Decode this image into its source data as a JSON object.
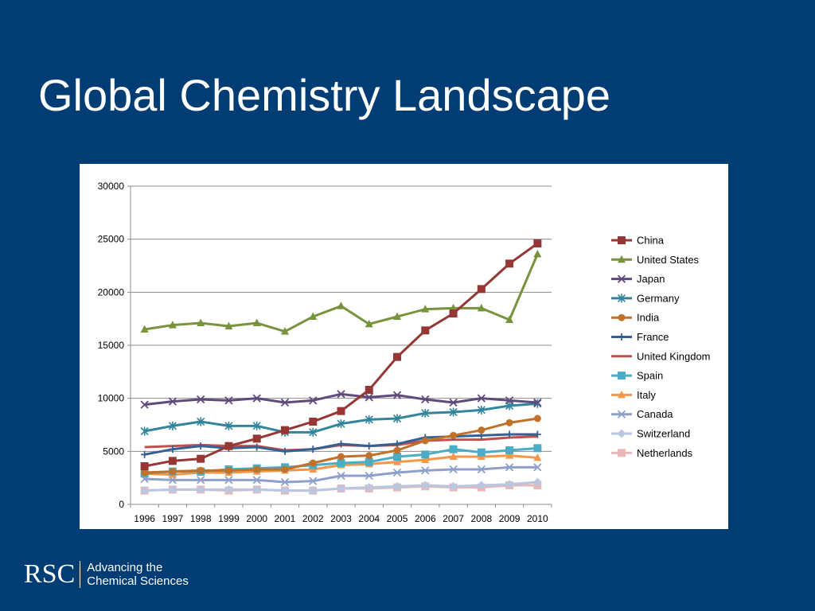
{
  "slide": {
    "title": "Global Chemistry Landscape"
  },
  "logo": {
    "mark": "RSC",
    "line1": "Advancing the",
    "line2": "Chemical Sciences"
  },
  "chart_data": {
    "type": "line",
    "title": "",
    "xlabel": "",
    "ylabel": "",
    "ylim": [
      0,
      30000
    ],
    "yticks": [
      0,
      5000,
      10000,
      15000,
      20000,
      25000,
      30000
    ],
    "grid": true,
    "legend_position": "right",
    "categories": [
      "1996",
      "1997",
      "1998",
      "1999",
      "2000",
      "2001",
      "2002",
      "2003",
      "2004",
      "2005",
      "2006",
      "2007",
      "2008",
      "2009",
      "2010"
    ],
    "series": [
      {
        "name": "China",
        "color": "#953735",
        "marker": "square",
        "values": [
          3600,
          4100,
          4300,
          5500,
          6200,
          7000,
          7800,
          8800,
          10800,
          13900,
          16400,
          18000,
          20300,
          22700,
          24600
        ]
      },
      {
        "name": "United States",
        "color": "#77933c",
        "marker": "triangle",
        "values": [
          16500,
          16900,
          17100,
          16800,
          17100,
          16300,
          17700,
          18700,
          17000,
          17700,
          18400,
          18500,
          18500,
          17400,
          23600
        ]
      },
      {
        "name": "Japan",
        "color": "#604a7b",
        "marker": "x",
        "values": [
          9400,
          9700,
          9900,
          9800,
          10000,
          9600,
          9800,
          10400,
          10100,
          10300,
          9900,
          9600,
          10000,
          9800,
          9600
        ]
      },
      {
        "name": "Germany",
        "color": "#31859c",
        "marker": "star",
        "values": [
          6900,
          7400,
          7800,
          7400,
          7400,
          6800,
          6800,
          7600,
          8000,
          8100,
          8600,
          8700,
          8900,
          9300,
          9500
        ]
      },
      {
        "name": "India",
        "color": "#c0722b",
        "marker": "circle",
        "values": [
          3000,
          3100,
          3200,
          3200,
          3300,
          3300,
          3900,
          4500,
          4600,
          5100,
          6000,
          6500,
          7000,
          7700,
          8100
        ]
      },
      {
        "name": "France",
        "color": "#376092",
        "marker": "plus",
        "values": [
          4700,
          5200,
          5500,
          5300,
          5400,
          5000,
          5200,
          5700,
          5500,
          5700,
          6300,
          6400,
          6500,
          6600,
          6600
        ]
      },
      {
        "name": "United Kingdom",
        "color": "#c0504d",
        "marker": "none",
        "values": [
          5400,
          5500,
          5600,
          5500,
          5500,
          5100,
          5200,
          5600,
          5500,
          5600,
          6000,
          6100,
          6100,
          6300,
          6400
        ]
      },
      {
        "name": "Spain",
        "color": "#4bacc6",
        "marker": "square",
        "values": [
          2900,
          3100,
          3100,
          3300,
          3400,
          3500,
          3700,
          3900,
          4000,
          4500,
          4700,
          5200,
          4900,
          5100,
          5300
        ]
      },
      {
        "name": "Italy",
        "color": "#f79646",
        "marker": "triangle",
        "values": [
          2900,
          2800,
          3000,
          3000,
          3100,
          3200,
          3300,
          3700,
          3800,
          4000,
          4200,
          4500,
          4500,
          4600,
          4400
        ]
      },
      {
        "name": "Canada",
        "color": "#8ea0c9",
        "marker": "x",
        "values": [
          2400,
          2300,
          2300,
          2300,
          2300,
          2100,
          2200,
          2700,
          2700,
          3000,
          3200,
          3300,
          3300,
          3500,
          3500
        ]
      },
      {
        "name": "Switzerland",
        "color": "#b9c7e3",
        "marker": "diamond",
        "values": [
          1300,
          1400,
          1400,
          1400,
          1400,
          1300,
          1300,
          1500,
          1600,
          1700,
          1800,
          1700,
          1800,
          1900,
          2100
        ]
      },
      {
        "name": "Netherlands",
        "color": "#e6b9b8",
        "marker": "square",
        "values": [
          1300,
          1400,
          1400,
          1300,
          1400,
          1300,
          1300,
          1500,
          1500,
          1600,
          1700,
          1600,
          1600,
          1800,
          1800
        ]
      }
    ]
  }
}
